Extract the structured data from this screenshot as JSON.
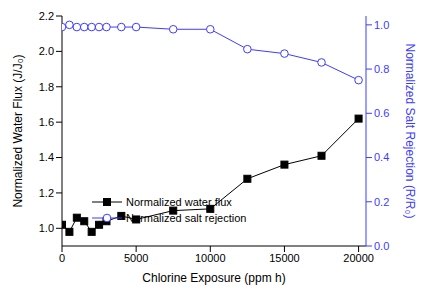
{
  "chart_data": {
    "type": "line",
    "x_label": "Chlorine Exposure (ppm h)",
    "y_label": "Normalized Water Flux (J/J₀)",
    "y2_label": "Normalized Salt Rejection (R/R₀)",
    "x": [
      0,
      500,
      1000,
      1500,
      2000,
      2500,
      3000,
      4000,
      5000,
      7500,
      10000,
      12500,
      15000,
      17500,
      20000
    ],
    "series": [
      {
        "name": "Normalized water flux",
        "color": "#000000",
        "marker": "square",
        "line_style": "solid",
        "values": [
          1.02,
          0.98,
          1.06,
          1.04,
          0.98,
          1.02,
          1.04,
          1.07,
          1.05,
          1.1,
          1.11,
          1.28,
          1.36,
          1.41,
          1.62
        ]
      },
      {
        "name": "Normalized salt rejection",
        "color": "#3c3cff",
        "marker": "open_circle",
        "line_style": "solid",
        "axis": "y2",
        "values": [
          0.99,
          1.0,
          0.99,
          0.99,
          0.99,
          0.99,
          0.99,
          0.99,
          0.99,
          0.98,
          0.98,
          0.89,
          0.87,
          0.83,
          0.75
        ]
      }
    ],
    "xlim": [
      0,
      20500
    ],
    "xticks": [
      0,
      5000,
      10000,
      15000,
      20000
    ],
    "ylim": [
      0.9,
      2.2
    ],
    "yticks": [
      {
        "value": 1,
        "label": "1.0"
      },
      1.2,
      1.4,
      1.6,
      1.8,
      {
        "value": 2,
        "label": "2.0"
      },
      2.2
    ],
    "y2lim": [
      0,
      1.04
    ],
    "y2ticks": [
      {
        "value": 0,
        "label": "0.0"
      },
      0.2,
      0.4,
      0.6,
      0.8,
      {
        "value": 1,
        "label": "1.0"
      }
    ],
    "grid": false,
    "legend": "lower left"
  }
}
